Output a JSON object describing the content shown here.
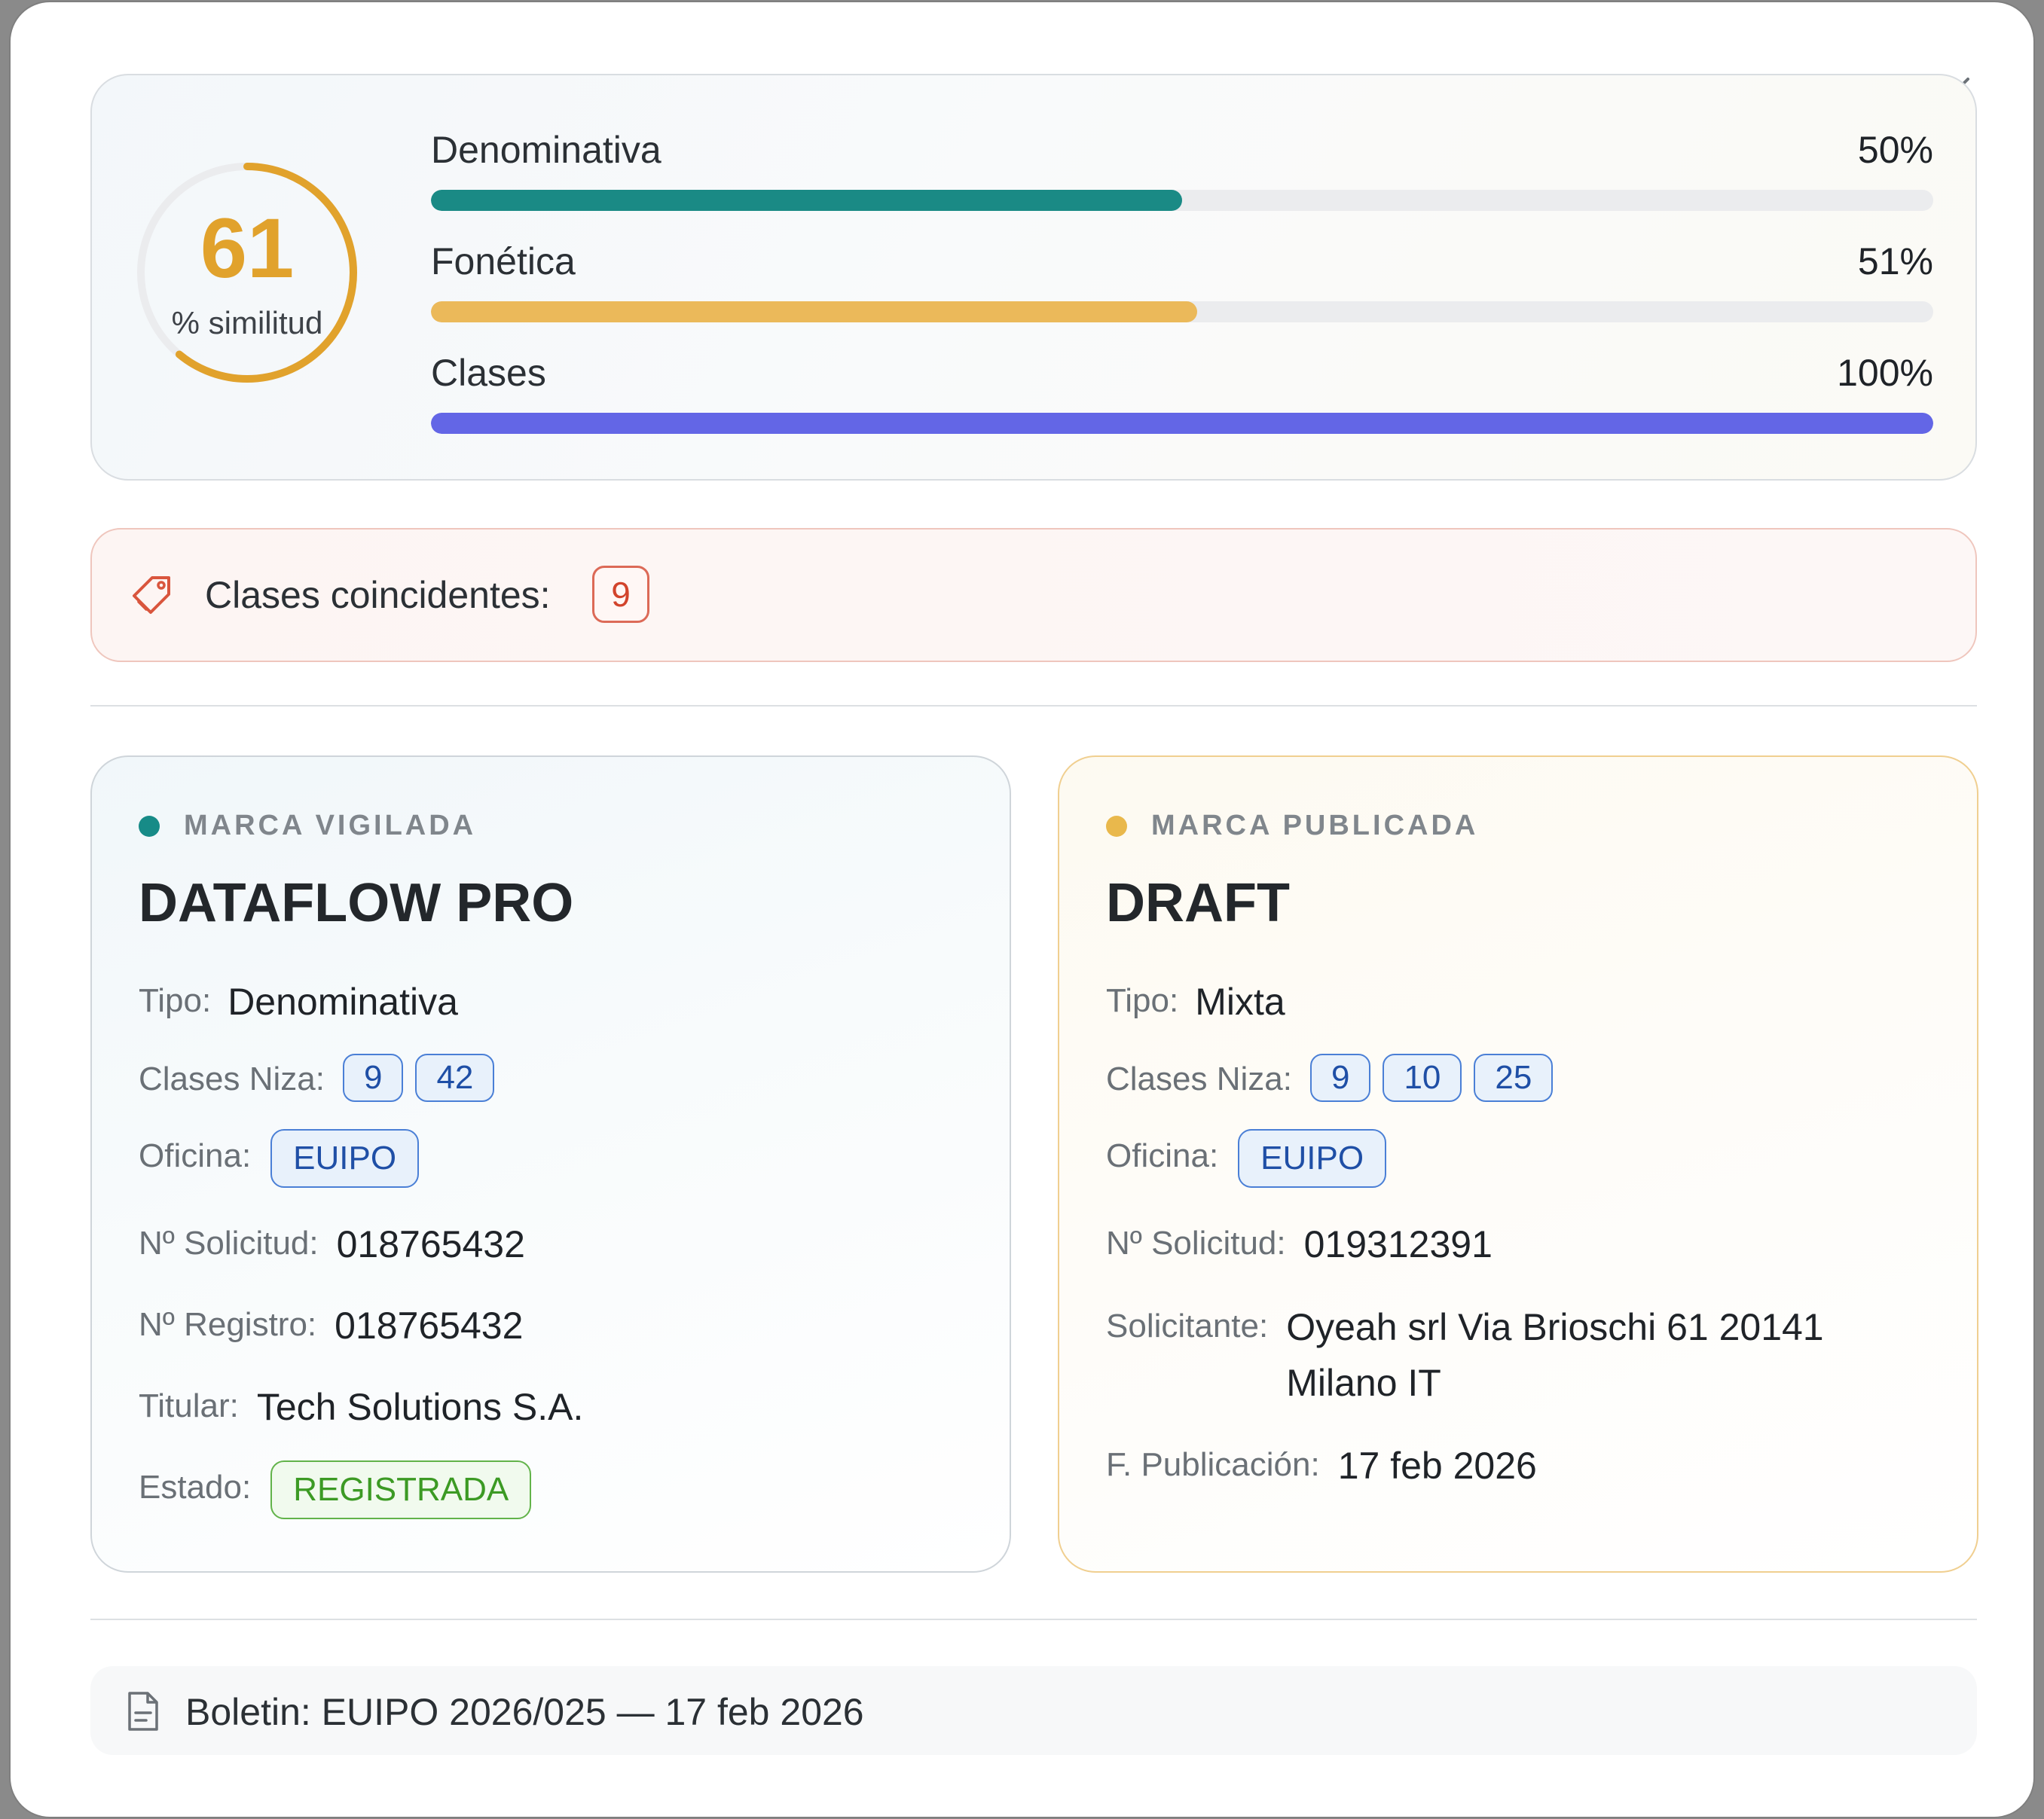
{
  "score": {
    "value": "61",
    "label": "% similitud",
    "fraction": 0.61,
    "ring_color": "#e1a22c"
  },
  "metrics": [
    {
      "name": "Denominativa",
      "pct_label": "50%",
      "value": 0.5,
      "color": "#1a8a85"
    },
    {
      "name": "Fonética",
      "pct_label": "51%",
      "value": 0.51,
      "color": "#ebb95a"
    },
    {
      "name": "Clases",
      "pct_label": "100%",
      "value": 1.0,
      "color": "#6366e6"
    }
  ],
  "matching_classes": {
    "label": "Clases coincidentes:",
    "classes": [
      "9"
    ],
    "icon": "tag-icon"
  },
  "watched_mark": {
    "kicker": "MARCA VIGILADA",
    "dot_color": "#178b87",
    "title": "DATAFLOW PRO",
    "type_label": "Tipo:",
    "type_value": "Denominativa",
    "classes_label": "Clases Niza:",
    "classes": [
      "9",
      "42"
    ],
    "office_label": "Oficina:",
    "office": "EUIPO",
    "application_label": "Nº Solicitud:",
    "application_number": "018765432",
    "registration_label": "Nº Registro:",
    "registration_number": "018765432",
    "holder_label": "Titular:",
    "holder": "Tech Solutions S.A.",
    "status_label": "Estado:",
    "status": "REGISTRADA"
  },
  "published_mark": {
    "kicker": "MARCA PUBLICADA",
    "dot_color": "#e9b84c",
    "title": "DRAFT",
    "type_label": "Tipo:",
    "type_value": "Mixta",
    "classes_label": "Clases Niza:",
    "classes": [
      "9",
      "10",
      "25"
    ],
    "office_label": "Oficina:",
    "office": "EUIPO",
    "application_label": "Nº Solicitud:",
    "application_number": "019312391",
    "applicant_label": "Solicitante:",
    "applicant_line1": "Oyeah srl Via Brioschi 61 20141",
    "applicant_line2": "Milano IT",
    "publication_label": "F. Publicación:",
    "publication_date": "17 feb 2026"
  },
  "bulletin": {
    "text": "Boletin: EUIPO 2026/025 — 17 feb 2026",
    "icon": "document-icon"
  },
  "close": {
    "icon": "close-icon"
  }
}
